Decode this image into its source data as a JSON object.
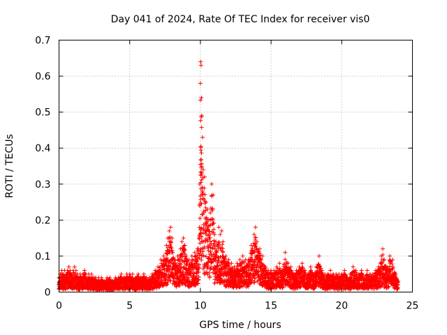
{
  "chart_data": {
    "type": "scatter",
    "title": "Day 041 of 2024, Rate Of TEC Index for receiver vis0",
    "xlabel": "GPS time / hours",
    "ylabel": "ROTI / TECUs",
    "xlim": [
      0,
      25
    ],
    "ylim": [
      0,
      0.7
    ],
    "xticks": [
      0,
      5,
      10,
      15,
      20,
      25
    ],
    "yticks": [
      0,
      0.1,
      0.2,
      0.3,
      0.4,
      0.5,
      0.6,
      0.7
    ],
    "grid": true,
    "legend": "none",
    "marker": "+",
    "color": "#ff0000",
    "series": [
      {
        "x": [
          0.0,
          0.1,
          0.2,
          0.3,
          0.4,
          0.5,
          0.6,
          0.7,
          0.8,
          0.9,
          1.0,
          1.1,
          1.2,
          1.3,
          1.4,
          1.5,
          1.6,
          1.7,
          1.8,
          1.9,
          2.0,
          2.1,
          2.2,
          2.3,
          2.4,
          2.5,
          2.6,
          2.7,
          2.8,
          2.9,
          3.0,
          3.2,
          3.4,
          3.6,
          3.8,
          4.0,
          4.2,
          4.4,
          4.6,
          4.8,
          5.0,
          5.2,
          5.4,
          5.6,
          5.8,
          6.0,
          6.2,
          6.4,
          6.6,
          6.8,
          7.0,
          7.2,
          7.4,
          7.6,
          7.7,
          7.8,
          7.9,
          8.0,
          8.2,
          8.4,
          8.6,
          8.7,
          8.8,
          8.9,
          9.0,
          9.2,
          9.4,
          9.6,
          9.8,
          9.9,
          9.95,
          10.0,
          10.02,
          10.05,
          10.08,
          10.1,
          10.15,
          10.2,
          10.3,
          10.4,
          10.5,
          10.6,
          10.7,
          10.8,
          10.9,
          11.0,
          11.1,
          11.2,
          11.3,
          11.4,
          11.5,
          11.6,
          11.8,
          12.0,
          12.2,
          12.4,
          12.6,
          12.8,
          13.0,
          13.2,
          13.4,
          13.6,
          13.8,
          13.9,
          14.0,
          14.2,
          14.4,
          14.6,
          14.8,
          15.0,
          15.2,
          15.4,
          15.6,
          15.8,
          16.0,
          16.2,
          16.4,
          16.6,
          16.8,
          17.0,
          17.2,
          17.4,
          17.6,
          17.8,
          18.0,
          18.2,
          18.4,
          18.6,
          18.8,
          19.0,
          19.2,
          19.4,
          19.6,
          19.8,
          20.0,
          20.2,
          20.4,
          20.6,
          20.8,
          21.0,
          21.2,
          21.4,
          21.6,
          21.8,
          22.0,
          22.2,
          22.4,
          22.6,
          22.8,
          22.9,
          23.0,
          23.2,
          23.4,
          23.6,
          23.8,
          24.0
        ],
        "y": [
          0.04,
          0.05,
          0.06,
          0.05,
          0.06,
          0.05,
          0.06,
          0.07,
          0.06,
          0.05,
          0.06,
          0.07,
          0.06,
          0.05,
          0.04,
          0.05,
          0.04,
          0.05,
          0.06,
          0.05,
          0.04,
          0.05,
          0.04,
          0.05,
          0.04,
          0.04,
          0.04,
          0.03,
          0.04,
          0.03,
          0.04,
          0.03,
          0.04,
          0.04,
          0.03,
          0.04,
          0.04,
          0.05,
          0.04,
          0.05,
          0.05,
          0.05,
          0.04,
          0.05,
          0.04,
          0.05,
          0.04,
          0.04,
          0.05,
          0.06,
          0.07,
          0.09,
          0.1,
          0.13,
          0.15,
          0.17,
          0.18,
          0.15,
          0.09,
          0.1,
          0.12,
          0.14,
          0.15,
          0.13,
          0.1,
          0.09,
          0.1,
          0.11,
          0.12,
          0.15,
          0.3,
          0.58,
          0.64,
          0.63,
          0.54,
          0.49,
          0.43,
          0.34,
          0.32,
          0.25,
          0.23,
          0.2,
          0.22,
          0.3,
          0.27,
          0.16,
          0.14,
          0.13,
          0.18,
          0.16,
          0.17,
          0.14,
          0.1,
          0.09,
          0.08,
          0.07,
          0.08,
          0.09,
          0.1,
          0.09,
          0.09,
          0.13,
          0.16,
          0.18,
          0.14,
          0.12,
          0.1,
          0.07,
          0.06,
          0.06,
          0.06,
          0.07,
          0.08,
          0.06,
          0.11,
          0.08,
          0.07,
          0.05,
          0.06,
          0.07,
          0.08,
          0.06,
          0.05,
          0.07,
          0.05,
          0.07,
          0.1,
          0.06,
          0.05,
          0.05,
          0.06,
          0.05,
          0.05,
          0.05,
          0.05,
          0.06,
          0.04,
          0.05,
          0.07,
          0.06,
          0.05,
          0.06,
          0.04,
          0.06,
          0.05,
          0.05,
          0.06,
          0.07,
          0.1,
          0.12,
          0.09,
          0.07,
          0.1,
          0.09,
          0.05,
          0.03
        ]
      }
    ]
  }
}
